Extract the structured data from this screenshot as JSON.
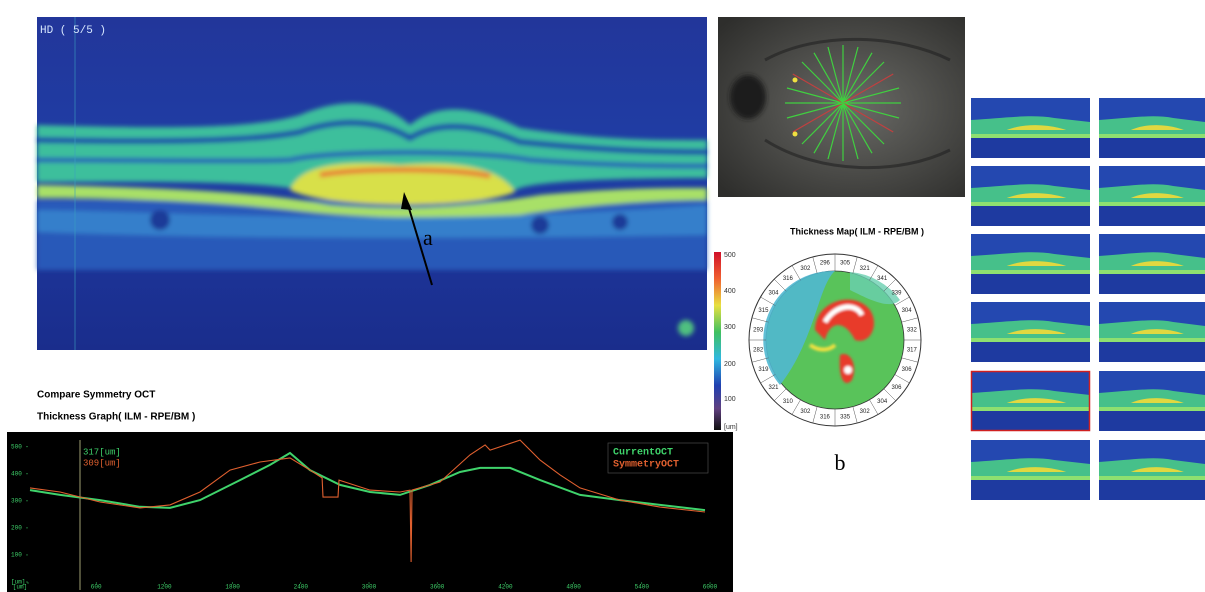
{
  "oct_scan": {
    "label": "HD ( 5/5 )",
    "annotation": "a"
  },
  "thickness_map": {
    "title": "Thickness Map( ILM - RPE/BM )",
    "scale_labels": [
      500,
      400,
      300,
      200,
      100,
      "[um]"
    ],
    "sector_values": [
      305,
      321,
      341,
      339,
      304,
      332,
      317,
      306,
      306,
      304,
      302,
      335,
      316,
      302,
      310,
      321,
      319,
      282,
      293,
      315,
      304,
      316,
      302,
      296
    ],
    "caption": "b"
  },
  "section_title": "Compare Symmetry OCT",
  "chart_data": {
    "type": "line",
    "title": "Thickness Graph( ILM - RPE/BM )",
    "annotations": [
      "317[um]",
      "309[um]"
    ],
    "series": [
      {
        "name": "CurrentOCT",
        "color": "#3fd36b",
        "x": [
          18,
          282,
          633,
          985,
          1249,
          1513,
          1865,
          2129,
          2305,
          2481,
          2745,
          3009,
          3273,
          3537,
          3801,
          3977,
          4241,
          4505,
          4856,
          5208,
          5560,
          5956
        ],
        "values": [
          340,
          322,
          303,
          278,
          274,
          303,
          377,
          433,
          477,
          414,
          359,
          333,
          322,
          359,
          407,
          422,
          422,
          377,
          322,
          303,
          285,
          266
        ]
      },
      {
        "name": "SymmetryOCT",
        "color": "#e0602f",
        "x": [
          18,
          282,
          633,
          985,
          1249,
          1513,
          1777,
          2041,
          2305,
          2481,
          2587,
          2595,
          2727,
          2736,
          3009,
          3273,
          3361,
          3370,
          3378,
          3625,
          3889,
          4021,
          4065,
          4329,
          4505,
          4681,
          4856,
          5208,
          5560,
          5956
        ],
        "values": [
          348,
          333,
          296,
          274,
          285,
          333,
          414,
          444,
          459,
          414,
          385,
          314,
          314,
          377,
          340,
          333,
          340,
          74,
          340,
          370,
          470,
          507,
          488,
          525,
          451,
          396,
          348,
          303,
          277,
          259
        ]
      }
    ],
    "xlim": [
      0,
      6000
    ],
    "xticks": [
      {
        "value": 0,
        "label": "[um]"
      },
      600,
      1200,
      1800,
      2400,
      3000,
      3600,
      4200,
      4800,
      5400,
      6000
    ],
    "ylim": [
      0,
      540
    ],
    "yticks": [
      {
        "value": 0,
        "label": "[um]"
      },
      100,
      200,
      300,
      400,
      500
    ],
    "legend": "top-right",
    "background": "#000000",
    "tick_color": "#3fd36b"
  }
}
